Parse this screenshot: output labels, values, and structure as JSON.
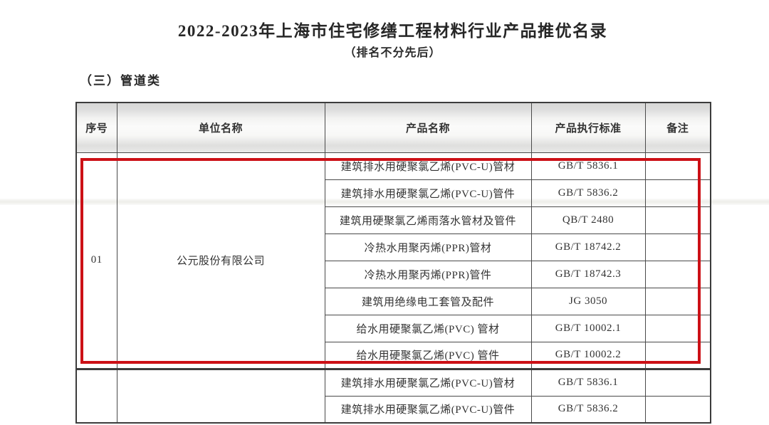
{
  "doc": {
    "title": "2022-2023年上海市住宅修缮工程材料行业产品推优名录",
    "subtitle": "（排名不分先后）",
    "section_heading": "（三）管道类"
  },
  "table": {
    "headers": [
      "序号",
      "单位名称",
      "产品名称",
      "产品执行标准",
      "备注"
    ],
    "groups": [
      {
        "no": "01",
        "company": "公元股份有限公司",
        "highlighted": true,
        "products": [
          {
            "name": "建筑排水用硬聚氯乙烯(PVC-U)管材",
            "standard": "GB/T 5836.1",
            "remark": ""
          },
          {
            "name": "建筑排水用硬聚氯乙烯(PVC-U)管件",
            "standard": "GB/T 5836.2",
            "remark": ""
          },
          {
            "name": "建筑用硬聚氯乙烯雨落水管材及管件",
            "standard": "QB/T 2480",
            "remark": ""
          },
          {
            "name": "冷热水用聚丙烯(PPR)管材",
            "standard": "GB/T 18742.2",
            "remark": ""
          },
          {
            "name": "冷热水用聚丙烯(PPR)管件",
            "standard": "GB/T 18742.3",
            "remark": ""
          },
          {
            "name": "建筑用绝缘电工套管及配件",
            "standard": "JG 3050",
            "remark": ""
          },
          {
            "name": "给水用硬聚氯乙烯(PVC) 管材",
            "standard": "GB/T 10002.1",
            "remark": ""
          },
          {
            "name": "给水用硬聚氯乙烯(PVC) 管件",
            "standard": "GB/T 10002.2",
            "remark": ""
          }
        ]
      },
      {
        "no": "",
        "company": "",
        "highlighted": false,
        "products": [
          {
            "name": "建筑排水用硬聚氯乙烯(PVC-U)管材",
            "standard": "GB/T 5836.1",
            "remark": ""
          },
          {
            "name": "建筑排水用硬聚氯乙烯(PVC-U)管件",
            "standard": "GB/T 5836.2",
            "remark": ""
          }
        ]
      }
    ]
  },
  "annotation": {
    "highlight_color": "#cc1016"
  }
}
